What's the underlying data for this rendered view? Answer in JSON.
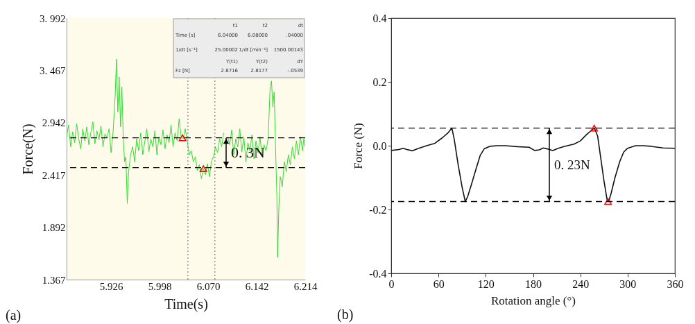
{
  "chart_data": [
    {
      "type": "line",
      "xlabel": "Time(s)",
      "ylabel": "Force(N)",
      "xlim": [
        5.86,
        6.214
      ],
      "ylim": [
        1.367,
        3.992
      ],
      "xticks": [
        5.926,
        5.998,
        {
          "value": 6.07,
          "label": "6.070"
        },
        6.142,
        6.214
      ],
      "yticks": [
        1.367,
        1.892,
        2.417,
        2.942,
        {
          "value": 3.467,
          "label": "3. 467"
        },
        {
          "value": 3.992,
          "label": "3. 992"
        }
      ],
      "series": [
        {
          "color": "#33dd33",
          "x": [
            5.86,
            5.863,
            5.866,
            5.869,
            5.872,
            5.875,
            5.878,
            5.881,
            5.884,
            5.887,
            5.89,
            5.893,
            5.896,
            5.899,
            5.902,
            5.905,
            5.908,
            5.911,
            5.914,
            5.917,
            5.92,
            5.923,
            5.926,
            5.929,
            5.932,
            5.934,
            5.936,
            5.938,
            5.94,
            5.942,
            5.944,
            5.946,
            5.948,
            5.95,
            5.952,
            5.955,
            5.958,
            5.961,
            5.964,
            5.967,
            5.97,
            5.973,
            5.976,
            5.979,
            5.982,
            5.985,
            5.988,
            5.991,
            5.994,
            5.997,
            6.0,
            6.003,
            6.006,
            6.009,
            6.012,
            6.015,
            6.018,
            6.021,
            6.024,
            6.027,
            6.03,
            6.033,
            6.036,
            6.039,
            6.042,
            6.045,
            6.048,
            6.051,
            6.054,
            6.057,
            6.06,
            6.063,
            6.066,
            6.069,
            6.072,
            6.075,
            6.078,
            6.081,
            6.084,
            6.087,
            6.09,
            6.093,
            6.096,
            6.099,
            6.102,
            6.105,
            6.108,
            6.111,
            6.114,
            6.117,
            6.12,
            6.123,
            6.126,
            6.129,
            6.132,
            6.135,
            6.138,
            6.141,
            6.144,
            6.147,
            6.15,
            6.153,
            6.156,
            6.159,
            6.162,
            6.164,
            6.166,
            6.168,
            6.17,
            6.172,
            6.173,
            6.175,
            6.177,
            6.18,
            6.183,
            6.186,
            6.189,
            6.192,
            6.195,
            6.198,
            6.201,
            6.204,
            6.207,
            6.21,
            6.212,
            6.214
          ],
          "values": [
            2.8,
            2.92,
            2.7,
            2.85,
            2.74,
            2.93,
            2.78,
            2.68,
            2.88,
            2.76,
            2.9,
            2.72,
            2.84,
            2.95,
            2.73,
            2.86,
            2.77,
            2.91,
            2.7,
            2.83,
            2.79,
            2.88,
            2.64,
            2.85,
            3.2,
            3.58,
            3.05,
            3.4,
            2.9,
            3.3,
            2.8,
            2.55,
            2.6,
            2.13,
            2.45,
            2.62,
            2.7,
            2.55,
            2.78,
            2.66,
            2.84,
            2.62,
            2.75,
            2.88,
            2.65,
            2.78,
            2.7,
            2.86,
            2.62,
            2.8,
            2.72,
            2.87,
            2.68,
            2.82,
            2.74,
            2.92,
            2.7,
            2.84,
            2.76,
            2.98,
            2.8,
            2.78,
            2.88,
            2.76,
            2.62,
            2.66,
            2.55,
            2.6,
            2.46,
            2.52,
            2.38,
            2.48,
            2.42,
            2.53,
            2.4,
            2.56,
            2.6,
            2.7,
            2.64,
            2.78,
            2.7,
            2.84,
            null,
            2.8,
            2.72,
            2.87,
            2.62,
            2.78,
            2.7,
            2.88,
            2.65,
            2.8,
            2.55,
            2.74,
            2.66,
            2.82,
            2.58,
            2.76,
            2.64,
            2.8,
            2.6,
            2.72,
            2.66,
            2.78,
            3.3,
            3.36,
            3.1,
            3.25,
            2.7,
            2.2,
            1.59,
            2.1,
            2.4,
            2.3,
            2.55,
            2.45,
            2.62,
            2.52,
            2.7,
            2.58,
            2.76,
            2.62,
            2.8,
            2.66,
            2.78,
            2.7
          ]
        },
        {
          "type": "scatter",
          "marker": "triangle",
          "color": "#ff0000",
          "x": [
            6.032,
            6.063
          ],
          "values": [
            2.79,
            2.48
          ]
        }
      ],
      "ref_lines": [
        {
          "axis": "y",
          "value": 2.79,
          "color": "#000000",
          "line_style": "dashed"
        },
        {
          "axis": "y",
          "value": 2.49,
          "color": "#000000",
          "line_style": "dashed"
        },
        {
          "axis": "x",
          "value": 6.04,
          "color": "#888888",
          "line_style": "dotted"
        },
        {
          "axis": "x",
          "value": 6.08,
          "color": "#888888",
          "line_style": "dotted"
        }
      ],
      "annotations": [
        "0. 3N",
        "(a)",
        "t1",
        "t2",
        "dt",
        "Time [s]",
        "6.04000",
        "6.08000",
        ".04000",
        "1/dt [s⁻¹]",
        "25.00002",
        "1/dt [min⁻¹]",
        "1500.00143",
        "Y(t1)",
        "Y(t2)",
        "dY",
        "Fz [N]",
        "2.8716",
        "2.8177",
        "-.0539"
      ]
    },
    {
      "type": "line",
      "xlabel": "Rotation angle (°)",
      "ylabel": "Force (N)",
      "xlim": [
        0,
        360
      ],
      "ylim": [
        -0.4,
        0.4
      ],
      "xticks": [
        0,
        60,
        120,
        180,
        240,
        300,
        360
      ],
      "yticks": [
        -0.4,
        -0.2,
        {
          "value": 0,
          "label": "0.0"
        },
        0.2,
        0.4
      ],
      "series": [
        {
          "color": "#111111",
          "x": [
            0,
            10,
            15,
            20,
            27,
            35,
            45,
            55,
            65,
            72,
            77,
            80,
            85,
            90,
            94,
            97,
            102,
            108,
            113,
            118,
            125,
            135,
            145,
            160,
            175,
            182,
            188,
            193,
            198,
            205,
            212,
            220,
            232,
            240,
            248,
            255,
            258,
            262,
            266,
            270,
            274,
            276,
            279,
            284,
            290,
            295,
            300,
            310,
            320,
            330,
            345,
            360
          ],
          "values": [
            -0.015,
            -0.012,
            -0.008,
            -0.012,
            -0.016,
            -0.008,
            0.0,
            0.007,
            0.025,
            0.04,
            0.055,
            0.02,
            -0.06,
            -0.13,
            -0.175,
            -0.16,
            -0.12,
            -0.07,
            -0.03,
            -0.01,
            -0.002,
            0.0,
            0.0,
            -0.003,
            -0.005,
            -0.015,
            -0.013,
            -0.007,
            -0.01,
            -0.015,
            -0.008,
            -0.002,
            0.005,
            0.015,
            0.035,
            0.05,
            0.055,
            0.03,
            -0.04,
            -0.11,
            -0.17,
            -0.175,
            -0.15,
            -0.1,
            -0.05,
            -0.02,
            -0.008,
            0.0,
            0.0,
            -0.002,
            -0.007,
            -0.008
          ]
        },
        {
          "type": "scatter",
          "marker": "triangle",
          "color": "#ff0000",
          "x": [
            257.6,
            275.2
          ],
          "values": [
            0.055,
            -0.175
          ]
        }
      ],
      "ref_lines": [
        {
          "axis": "y",
          "value": 0.055,
          "color": "#000000",
          "line_style": "dashed"
        },
        {
          "axis": "y",
          "value": -0.175,
          "color": "#000000",
          "line_style": "dashed"
        }
      ],
      "annotations": [
        "0. 23N",
        "(b)"
      ]
    }
  ]
}
